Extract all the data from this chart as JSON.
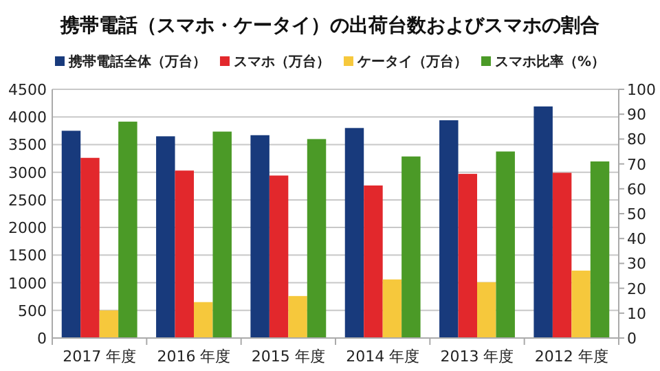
{
  "chart_data": {
    "type": "bar",
    "title": "携帯電話（スマホ・ケータイ）の出荷台数およびスマホの割合",
    "categories": [
      "2017 年度",
      "2016 年度",
      "2015 年度",
      "2014 年度",
      "2013 年度",
      "2012 年度"
    ],
    "series": [
      {
        "name": "携帯電話全体（万台）",
        "color": "#183a7c",
        "values": [
          3750,
          3650,
          3670,
          3800,
          3940,
          4190
        ]
      },
      {
        "name": "スマホ（万台）",
        "color": "#e2282c",
        "values": [
          3260,
          3030,
          2940,
          2760,
          2970,
          2990
        ]
      },
      {
        "name": "ケータイ（万台）",
        "color": "#f6c83c",
        "values": [
          500,
          650,
          760,
          1060,
          1010,
          1220
        ]
      },
      {
        "name": "スマホ比率（%）",
        "color": "#4b9a27",
        "axis": "y2",
        "values": [
          87,
          83,
          80,
          73,
          75,
          71
        ]
      }
    ],
    "ylim": [
      0,
      4500
    ],
    "yticks": [
      0,
      500,
      1000,
      1500,
      2000,
      2500,
      3000,
      3500,
      4000,
      4500
    ],
    "y2lim": [
      0,
      100
    ],
    "y2ticks": [
      0,
      10,
      20,
      30,
      40,
      50,
      60,
      70,
      80,
      90,
      100
    ],
    "grid": "y",
    "legend": "top"
  }
}
